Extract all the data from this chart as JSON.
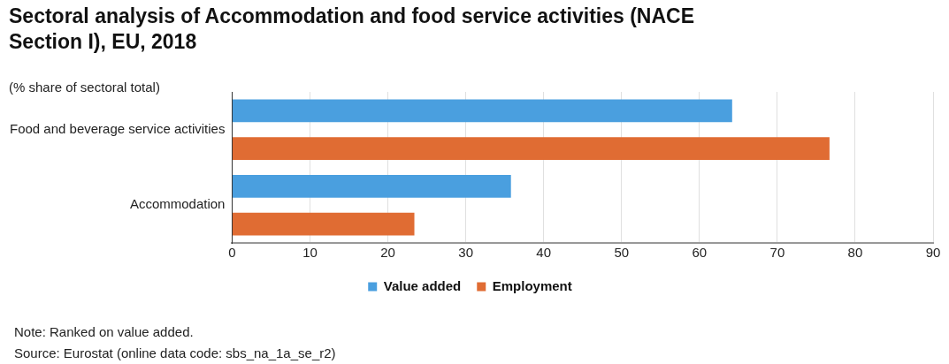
{
  "chart_data": {
    "type": "bar",
    "orientation": "horizontal",
    "title": "Sectoral analysis of Accommodation and food service activities (NACE Section I), EU, 2018",
    "subtitle": "(% share of sectoral total)",
    "categories": [
      "Food and beverage service activities",
      "Accommodation"
    ],
    "series": [
      {
        "name": "Value added",
        "color": "#4a9fdf",
        "values": [
          64.2,
          35.8
        ]
      },
      {
        "name": "Employment",
        "color": "#e06c33",
        "values": [
          76.7,
          23.4
        ]
      }
    ],
    "xlim": [
      0,
      90
    ],
    "xticks": [
      0,
      10,
      20,
      30,
      40,
      50,
      60,
      70,
      80,
      90
    ],
    "grid": "x",
    "legend": "bottom",
    "annotations": [
      "Note:  Ranked on value added.",
      "Source: Eurostat (online data code: sbs_na_1a_se_r2)"
    ]
  }
}
